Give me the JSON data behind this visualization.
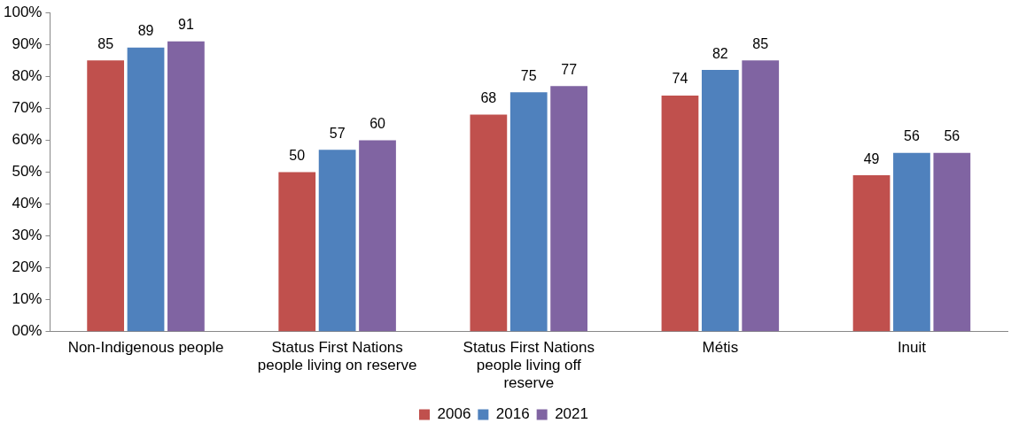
{
  "chart_data": {
    "type": "bar",
    "categories": [
      "Non-Indigenous people",
      "Status First Nations people living on reserve",
      "Status First Nations people living off reserve",
      "Métis",
      "Inuit"
    ],
    "series": [
      {
        "name": "2006",
        "color": "#c0504d",
        "values": [
          85,
          50,
          68,
          74,
          49
        ]
      },
      {
        "name": "2016",
        "color": "#4f81bd",
        "values": [
          89,
          57,
          75,
          82,
          56
        ]
      },
      {
        "name": "2021",
        "color": "#8064a2",
        "values": [
          91,
          60,
          77,
          85,
          56
        ]
      }
    ],
    "ylim": [
      0,
      100
    ],
    "yticks": [
      {
        "value": 0,
        "label": "00%"
      },
      {
        "value": 10,
        "label": "10%"
      },
      {
        "value": 20,
        "label": "20%"
      },
      {
        "value": 30,
        "label": "30%"
      },
      {
        "value": 40,
        "label": "40%"
      },
      {
        "value": 50,
        "label": "50%"
      },
      {
        "value": 60,
        "label": "60%"
      },
      {
        "value": 70,
        "label": "70%"
      },
      {
        "value": 80,
        "label": "80%"
      },
      {
        "value": 90,
        "label": "90%"
      },
      {
        "value": 100,
        "label": "100%"
      }
    ],
    "data_labels": true,
    "grid": false,
    "legend": "bottom"
  }
}
